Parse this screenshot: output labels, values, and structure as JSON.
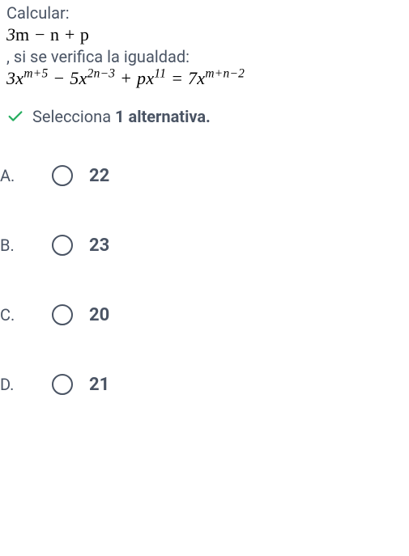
{
  "question": {
    "prompt_lead": "Calcular:",
    "expr1_html": "3<span class='normal'>m</span> − <span class='normal'>n</span> + <span class='normal'>p</span>",
    "prompt_mid": ", si se verifica la igualdad:",
    "expr2_html": "3x<sup>m+5</sup> − 5x<sup>2n−3</sup> + px<sup>11</sup> = 7x<sup>m+n−2</sup>"
  },
  "instruction": {
    "prefix": "Selecciona ",
    "bold": "1 alternativa."
  },
  "options": [
    {
      "letter": "A.",
      "label": "22"
    },
    {
      "letter": "B.",
      "label": "23"
    },
    {
      "letter": "C.",
      "label": "20"
    },
    {
      "letter": "D.",
      "label": "21"
    }
  ],
  "colors": {
    "check": "#27ae60",
    "text": "#4a5464",
    "math": "#000000"
  }
}
